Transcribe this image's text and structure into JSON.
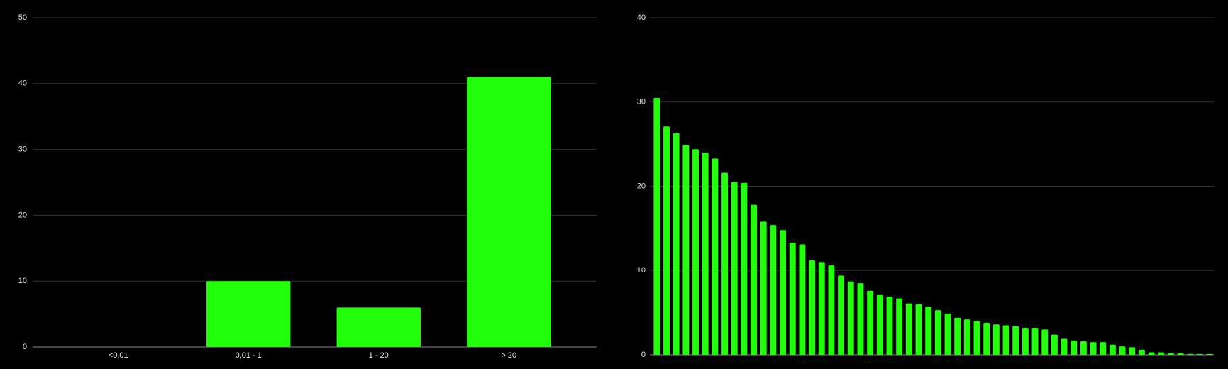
{
  "chart_data": [
    {
      "type": "bar",
      "categories": [
        "<0,01",
        "0,01 - 1",
        "1 - 20",
        "> 20"
      ],
      "values": [
        0,
        10,
        6,
        41
      ],
      "color": "#22ff0a",
      "ylim": [
        0,
        50
      ],
      "yticks": [
        0,
        10,
        20,
        30,
        40,
        50
      ],
      "grid": true
    },
    {
      "type": "bar",
      "categories": [
        null,
        null,
        null,
        null,
        null,
        null,
        null,
        null,
        null,
        null,
        null,
        null,
        null,
        null,
        null,
        null,
        null,
        null,
        null,
        null,
        null,
        null,
        null,
        null,
        null,
        null,
        null,
        null,
        null,
        null,
        null,
        null,
        null,
        null,
        null,
        null,
        null,
        null,
        null,
        null,
        null,
        null,
        null,
        null,
        null,
        null,
        null,
        null,
        null,
        null,
        null,
        null,
        null,
        null,
        null,
        null,
        null,
        null
      ],
      "values": [
        30.5,
        27.1,
        26.3,
        24.9,
        24.4,
        24.0,
        23.3,
        21.6,
        20.5,
        20.4,
        17.8,
        15.8,
        15.4,
        14.8,
        13.3,
        13.1,
        11.2,
        11.0,
        10.6,
        9.4,
        8.7,
        8.5,
        7.6,
        7.1,
        6.9,
        6.7,
        6.1,
        6.0,
        5.7,
        5.3,
        4.9,
        4.4,
        4.2,
        4.0,
        3.8,
        3.6,
        3.5,
        3.4,
        3.2,
        3.2,
        3.0,
        2.4,
        1.9,
        1.7,
        1.6,
        1.5,
        1.5,
        1.2,
        1.0,
        0.9,
        0.6,
        0.3,
        0.3,
        0.2,
        0.2,
        0.1,
        0.1,
        0.1
      ],
      "color": "#22ff0a",
      "ylim": [
        0,
        40
      ],
      "yticks": [
        0,
        10,
        20,
        30,
        40
      ],
      "grid": true
    }
  ]
}
